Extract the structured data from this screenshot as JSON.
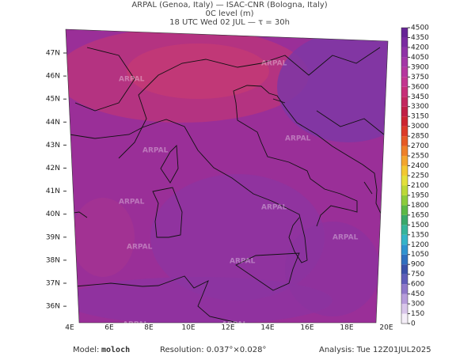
{
  "header": {
    "lines": [
      "ARPAL (Genoa, Italy)  —  ISAC-CNR (Bologna, Italy)",
      "0C level (m)",
      "18 UTC Wed 02 JUL  —  τ = 30h"
    ]
  },
  "map": {
    "lat_labels": [
      "47N",
      "46N",
      "45N",
      "44N",
      "43N",
      "42N",
      "41N",
      "40N",
      "39N",
      "38N",
      "37N",
      "36N"
    ],
    "lon_labels": [
      "4E",
      "6E",
      "8E",
      "10E",
      "12E",
      "14E",
      "16E",
      "18E",
      "20E"
    ],
    "watermark": "ARPAL"
  },
  "colorbar": {
    "ticks": [
      0,
      150,
      300,
      450,
      600,
      750,
      900,
      1050,
      1200,
      1350,
      1500,
      1650,
      1800,
      1950,
      2100,
      2250,
      2400,
      2550,
      2700,
      2850,
      3000,
      3150,
      3300,
      3450,
      3600,
      3750,
      3900,
      4050,
      4200,
      4350,
      4500
    ],
    "colors": [
      "#f4eef8",
      "#d9c6ea",
      "#b79ddb",
      "#8f78c9",
      "#5f5cb8",
      "#3a50a8",
      "#2f6fbf",
      "#2f93cf",
      "#35b4c8",
      "#36b49a",
      "#3aa86a",
      "#5cb845",
      "#8ccb3a",
      "#bcd836",
      "#e3e03a",
      "#f2c830",
      "#f3a52c",
      "#ee8028",
      "#e65a25",
      "#dc3a28",
      "#cc2430",
      "#c01f45",
      "#c2275e",
      "#c62f78",
      "#c2368f",
      "#b5379e",
      "#a337a6",
      "#8f32a6",
      "#7a2ba0",
      "#662495"
    ]
  },
  "footer": {
    "model_label": "Model:",
    "model": "moloch",
    "resolution": "Resolution: 0.037°×0.028°",
    "analysis": "Analysis: Tue 12Z01JUL2025"
  }
}
